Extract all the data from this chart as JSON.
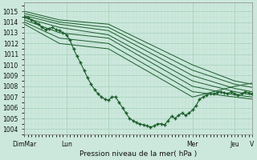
{
  "xlabel": "Pression niveau de la mer( hPa )",
  "xlim": [
    0,
    130
  ],
  "ylim": [
    1003.5,
    1015.8
  ],
  "yticks": [
    1004,
    1005,
    1006,
    1007,
    1008,
    1009,
    1010,
    1011,
    1012,
    1013,
    1014,
    1015
  ],
  "xtick_positions": [
    0,
    24,
    48,
    96,
    120,
    130
  ],
  "xtick_labels": [
    "DimMar",
    "Lun",
    "",
    "Mer",
    "Jeu",
    "V"
  ],
  "bg_color": "#cce8dc",
  "grid_major_color": "#aad4c0",
  "grid_minor_color": "#bbddd0",
  "line_color": "#1a5c2a",
  "figsize": [
    3.2,
    2.0
  ],
  "dpi": 100,
  "ensemble_lines": [
    {
      "x": [
        0,
        20,
        48,
        96,
        120,
        130
      ],
      "y": [
        1015.0,
        1014.2,
        1013.8,
        1010.0,
        1008.5,
        1008.2
      ]
    },
    {
      "x": [
        0,
        20,
        48,
        96,
        120,
        130
      ],
      "y": [
        1014.8,
        1014.0,
        1013.5,
        1009.5,
        1008.2,
        1007.9
      ]
    },
    {
      "x": [
        0,
        20,
        48,
        96,
        120,
        130
      ],
      "y": [
        1014.6,
        1013.8,
        1013.2,
        1009.0,
        1007.8,
        1007.5
      ]
    },
    {
      "x": [
        0,
        20,
        48,
        96,
        120,
        130
      ],
      "y": [
        1014.4,
        1013.5,
        1012.8,
        1008.5,
        1007.5,
        1007.2
      ]
    },
    {
      "x": [
        0,
        20,
        48,
        96,
        120,
        130
      ],
      "y": [
        1014.2,
        1013.0,
        1012.5,
        1008.0,
        1007.2,
        1007.0
      ]
    },
    {
      "x": [
        0,
        20,
        48,
        96,
        120,
        130
      ],
      "y": [
        1014.0,
        1012.5,
        1012.0,
        1007.5,
        1007.0,
        1006.8
      ]
    },
    {
      "x": [
        0,
        20,
        48,
        96,
        120,
        130
      ],
      "y": [
        1013.8,
        1012.0,
        1011.5,
        1007.0,
        1008.0,
        1008.3
      ]
    }
  ],
  "main_line": {
    "x": [
      0,
      2,
      4,
      6,
      8,
      10,
      12,
      14,
      16,
      18,
      20,
      22,
      24,
      26,
      28,
      30,
      32,
      34,
      36,
      38,
      40,
      42,
      44,
      46,
      48,
      50,
      52,
      54,
      56,
      58,
      60,
      62,
      64,
      66,
      68,
      70,
      72,
      74,
      76,
      78,
      80,
      82,
      84,
      86,
      88,
      90,
      92,
      94,
      96,
      98,
      100,
      102,
      104,
      106,
      108,
      110,
      112,
      114,
      116,
      118,
      120,
      122,
      124,
      126,
      128,
      130
    ],
    "y": [
      1014.5,
      1014.4,
      1014.2,
      1014.0,
      1013.8,
      1013.5,
      1013.3,
      1013.4,
      1013.5,
      1013.3,
      1013.2,
      1013.0,
      1012.8,
      1012.3,
      1011.5,
      1010.8,
      1010.2,
      1009.5,
      1008.8,
      1008.2,
      1007.7,
      1007.3,
      1007.0,
      1006.8,
      1006.7,
      1007.0,
      1007.0,
      1006.5,
      1006.0,
      1005.5,
      1005.0,
      1004.8,
      1004.6,
      1004.5,
      1004.4,
      1004.3,
      1004.2,
      1004.3,
      1004.5,
      1004.5,
      1004.4,
      1004.8,
      1005.2,
      1005.0,
      1005.3,
      1005.5,
      1005.3,
      1005.5,
      1005.8,
      1006.2,
      1006.8,
      1007.0,
      1007.2,
      1007.3,
      1007.3,
      1007.4,
      1007.5,
      1007.4,
      1007.3,
      1007.5,
      1007.3,
      1007.2,
      1007.3,
      1007.5,
      1007.4,
      1007.3
    ]
  }
}
